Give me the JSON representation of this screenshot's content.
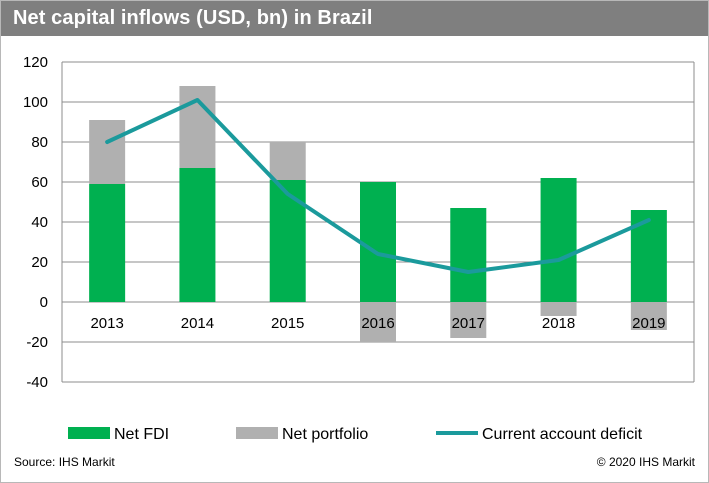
{
  "title": "Net capital inflows (USD, bn) in Brazil",
  "footer": {
    "source": "Source: IHS Markit",
    "copyright": "© 2020 IHS Markit"
  },
  "colors": {
    "fdi": "#00b050",
    "portfolio": "#b0b0b0",
    "deficit": "#1b9a9c",
    "header": "#7f7f7f"
  },
  "chart_data": {
    "type": "bar",
    "categories": [
      "2013",
      "2014",
      "2015",
      "2016",
      "2017",
      "2018",
      "2019"
    ],
    "series": [
      {
        "name": "Net FDI",
        "kind": "bar",
        "values": [
          59,
          67,
          61,
          60,
          47,
          62,
          46
        ]
      },
      {
        "name": "Net portfolio",
        "kind": "bar",
        "values": [
          32,
          41,
          19,
          -20,
          -18,
          -7,
          -14
        ]
      },
      {
        "name": "Current account deficit",
        "kind": "line",
        "values": [
          80,
          101,
          54,
          24,
          15,
          21,
          41
        ]
      }
    ],
    "ylim": [
      -40,
      120
    ],
    "yticks": [
      "120",
      "100",
      "80",
      "60",
      "40",
      "20",
      "0",
      "-20",
      "-40"
    ],
    "grid": true,
    "legend": "bottom"
  }
}
